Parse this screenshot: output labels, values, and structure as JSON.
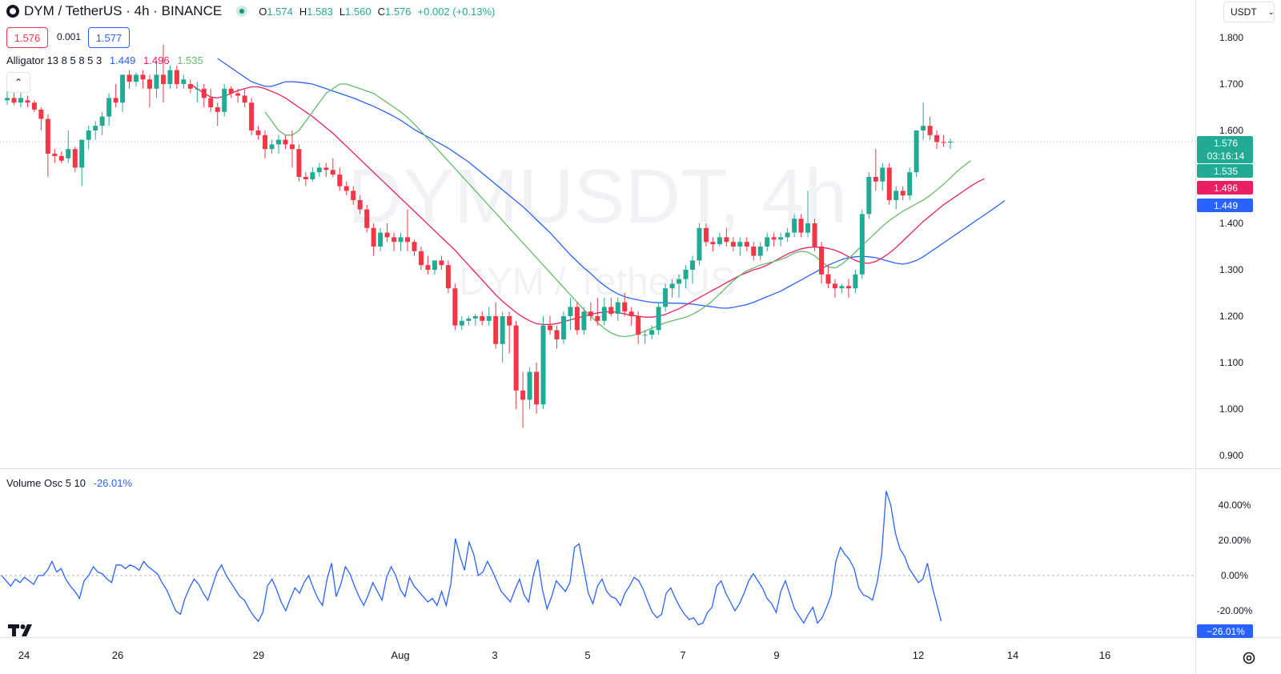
{
  "header": {
    "symbol": "DYM / TetherUS · 4h · BINANCE",
    "open_label": "O",
    "open": "1.574",
    "high_label": "H",
    "high": "1.583",
    "low_label": "L",
    "low": "1.560",
    "close_label": "C",
    "close": "1.576",
    "change": "+0.002 (+0.13%)"
  },
  "price_boxes": {
    "sell": "1.576",
    "spread": "0.001",
    "buy": "1.577"
  },
  "alligator": {
    "label": "Alligator 13 8 5 8 5 3",
    "jaw": "1.449",
    "teeth": "1.496",
    "lips": "1.535"
  },
  "volume_osc": {
    "label": "Volume Osc 5 10",
    "value": "-26.01%"
  },
  "currency_button": "USDT",
  "watermark": {
    "main": "DYMUSDT, 4h",
    "sub": "DYM / TetherUS"
  },
  "price_axis": {
    "ticks": [
      "1.800",
      "1.700",
      "1.600",
      "1.400",
      "1.300",
      "1.200",
      "1.100",
      "1.000",
      "0.900"
    ]
  },
  "osc_axis": {
    "ticks": [
      "40.00%",
      "20.00%",
      "0.00%",
      "-20.00%"
    ]
  },
  "last_price": {
    "price": "1.576",
    "countdown": "03:16:14"
  },
  "axis_labels": {
    "lips": "1.535",
    "teeth": "1.496",
    "jaw": "1.449",
    "osc": "−26.01%"
  },
  "time_axis": {
    "labels": [
      "24",
      "26",
      "29",
      "Aug",
      "3",
      "5",
      "7",
      "9",
      "12",
      "14",
      "16"
    ]
  },
  "colors": {
    "up": "#22ab94",
    "down": "#f23645",
    "jaw": "#2962ff",
    "teeth": "#e91e63",
    "lips": "#66bb6a",
    "osc": "#2962ff"
  },
  "icons": {
    "tv_logo": "tradingview-logo-icon",
    "settings": "settings-gear-icon",
    "collapse": "chevron-up-icon",
    "dropdown": "chevron-down-icon"
  },
  "chart_data": {
    "type": "candlestick",
    "timeframe": "4h",
    "ylim": [
      0.9,
      1.8
    ],
    "candles": [
      [
        1.665,
        1.685,
        1.655,
        1.67
      ],
      [
        1.67,
        1.69,
        1.655,
        1.66
      ],
      [
        1.66,
        1.69,
        1.65,
        1.67
      ],
      [
        1.665,
        1.675,
        1.65,
        1.66
      ],
      [
        1.66,
        1.665,
        1.64,
        1.645
      ],
      [
        1.645,
        1.65,
        1.6,
        1.625
      ],
      [
        1.625,
        1.635,
        1.5,
        1.55
      ],
      [
        1.55,
        1.56,
        1.53,
        1.545
      ],
      [
        1.545,
        1.555,
        1.53,
        1.535
      ],
      [
        1.54,
        1.6,
        1.53,
        1.56
      ],
      [
        1.56,
        1.565,
        1.51,
        1.52
      ],
      [
        1.52,
        1.58,
        1.48,
        1.58
      ],
      [
        1.58,
        1.61,
        1.56,
        1.6
      ],
      [
        1.6,
        1.62,
        1.58,
        1.61
      ],
      [
        1.61,
        1.64,
        1.59,
        1.63
      ],
      [
        1.63,
        1.68,
        1.61,
        1.67
      ],
      [
        1.67,
        1.7,
        1.65,
        1.66
      ],
      [
        1.66,
        1.72,
        1.64,
        1.72
      ],
      [
        1.72,
        1.73,
        1.69,
        1.705
      ],
      [
        1.705,
        1.725,
        1.695,
        1.72
      ],
      [
        1.72,
        1.73,
        1.69,
        1.71
      ],
      [
        1.71,
        1.72,
        1.65,
        1.69
      ],
      [
        1.69,
        1.75,
        1.67,
        1.72
      ],
      [
        1.72,
        1.785,
        1.66,
        1.7
      ],
      [
        1.7,
        1.74,
        1.69,
        1.73
      ],
      [
        1.73,
        1.74,
        1.69,
        1.7
      ],
      [
        1.7,
        1.72,
        1.69,
        1.71
      ],
      [
        1.7,
        1.71,
        1.68,
        1.69
      ],
      [
        1.69,
        1.705,
        1.66,
        1.69
      ],
      [
        1.69,
        1.7,
        1.65,
        1.67
      ],
      [
        1.67,
        1.69,
        1.64,
        1.65
      ],
      [
        1.65,
        1.66,
        1.61,
        1.64
      ],
      [
        1.64,
        1.7,
        1.63,
        1.69
      ],
      [
        1.69,
        1.695,
        1.67,
        1.68
      ],
      [
        1.68,
        1.69,
        1.66,
        1.675
      ],
      [
        1.675,
        1.69,
        1.65,
        1.66
      ],
      [
        1.66,
        1.67,
        1.59,
        1.6
      ],
      [
        1.6,
        1.61,
        1.58,
        1.59
      ],
      [
        1.59,
        1.6,
        1.54,
        1.56
      ],
      [
        1.56,
        1.58,
        1.55,
        1.57
      ],
      [
        1.57,
        1.59,
        1.55,
        1.58
      ],
      [
        1.58,
        1.59,
        1.56,
        1.57
      ],
      [
        1.57,
        1.6,
        1.52,
        1.56
      ],
      [
        1.56,
        1.57,
        1.49,
        1.5
      ],
      [
        1.5,
        1.51,
        1.48,
        1.495
      ],
      [
        1.495,
        1.52,
        1.49,
        1.51
      ],
      [
        1.51,
        1.53,
        1.5,
        1.52
      ],
      [
        1.52,
        1.53,
        1.5,
        1.515
      ],
      [
        1.515,
        1.54,
        1.5,
        1.505
      ],
      [
        1.505,
        1.52,
        1.47,
        1.48
      ],
      [
        1.48,
        1.49,
        1.46,
        1.47
      ],
      [
        1.47,
        1.48,
        1.44,
        1.45
      ],
      [
        1.45,
        1.46,
        1.42,
        1.43
      ],
      [
        1.43,
        1.44,
        1.38,
        1.39
      ],
      [
        1.39,
        1.4,
        1.33,
        1.35
      ],
      [
        1.35,
        1.39,
        1.34,
        1.38
      ],
      [
        1.38,
        1.4,
        1.36,
        1.37
      ],
      [
        1.37,
        1.38,
        1.34,
        1.36
      ],
      [
        1.36,
        1.38,
        1.34,
        1.37
      ],
      [
        1.37,
        1.43,
        1.34,
        1.36
      ],
      [
        1.36,
        1.365,
        1.33,
        1.34
      ],
      [
        1.34,
        1.35,
        1.3,
        1.31
      ],
      [
        1.31,
        1.33,
        1.29,
        1.3
      ],
      [
        1.3,
        1.32,
        1.29,
        1.32
      ],
      [
        1.32,
        1.33,
        1.3,
        1.31
      ],
      [
        1.31,
        1.32,
        1.25,
        1.26
      ],
      [
        1.26,
        1.27,
        1.17,
        1.18
      ],
      [
        1.18,
        1.2,
        1.17,
        1.19
      ],
      [
        1.19,
        1.2,
        1.18,
        1.195
      ],
      [
        1.195,
        1.205,
        1.18,
        1.2
      ],
      [
        1.2,
        1.21,
        1.18,
        1.19
      ],
      [
        1.19,
        1.22,
        1.18,
        1.2
      ],
      [
        1.2,
        1.23,
        1.13,
        1.14
      ],
      [
        1.14,
        1.21,
        1.1,
        1.2
      ],
      [
        1.2,
        1.21,
        1.12,
        1.18
      ],
      [
        1.18,
        1.19,
        1.0,
        1.04
      ],
      [
        1.04,
        1.08,
        0.96,
        1.02
      ],
      [
        1.02,
        1.09,
        1.0,
        1.08
      ],
      [
        1.08,
        1.1,
        0.99,
        1.01
      ],
      [
        1.01,
        1.2,
        1.0,
        1.18
      ],
      [
        1.18,
        1.2,
        1.16,
        1.17
      ],
      [
        1.17,
        1.18,
        1.13,
        1.15
      ],
      [
        1.15,
        1.21,
        1.14,
        1.2
      ],
      [
        1.2,
        1.24,
        1.17,
        1.22
      ],
      [
        1.22,
        1.23,
        1.16,
        1.17
      ],
      [
        1.17,
        1.22,
        1.16,
        1.21
      ],
      [
        1.21,
        1.23,
        1.19,
        1.2
      ],
      [
        1.2,
        1.24,
        1.18,
        1.19
      ],
      [
        1.19,
        1.24,
        1.18,
        1.22
      ],
      [
        1.22,
        1.24,
        1.2,
        1.205
      ],
      [
        1.205,
        1.24,
        1.19,
        1.23
      ],
      [
        1.23,
        1.25,
        1.2,
        1.21
      ],
      [
        1.21,
        1.22,
        1.18,
        1.2
      ],
      [
        1.2,
        1.21,
        1.14,
        1.16
      ],
      [
        1.16,
        1.17,
        1.14,
        1.16
      ],
      [
        1.16,
        1.18,
        1.15,
        1.17
      ],
      [
        1.17,
        1.23,
        1.16,
        1.22
      ],
      [
        1.22,
        1.27,
        1.21,
        1.26
      ],
      [
        1.26,
        1.28,
        1.24,
        1.27
      ],
      [
        1.27,
        1.29,
        1.24,
        1.28
      ],
      [
        1.28,
        1.31,
        1.26,
        1.3
      ],
      [
        1.3,
        1.33,
        1.27,
        1.32
      ],
      [
        1.32,
        1.4,
        1.31,
        1.39
      ],
      [
        1.39,
        1.4,
        1.35,
        1.36
      ],
      [
        1.36,
        1.37,
        1.34,
        1.355
      ],
      [
        1.355,
        1.38,
        1.35,
        1.37
      ],
      [
        1.37,
        1.39,
        1.35,
        1.36
      ],
      [
        1.36,
        1.37,
        1.34,
        1.35
      ],
      [
        1.35,
        1.37,
        1.33,
        1.36
      ],
      [
        1.36,
        1.37,
        1.34,
        1.35
      ],
      [
        1.35,
        1.36,
        1.32,
        1.33
      ],
      [
        1.33,
        1.36,
        1.32,
        1.35
      ],
      [
        1.35,
        1.38,
        1.34,
        1.37
      ],
      [
        1.37,
        1.38,
        1.35,
        1.365
      ],
      [
        1.365,
        1.38,
        1.35,
        1.37
      ],
      [
        1.37,
        1.39,
        1.36,
        1.38
      ],
      [
        1.38,
        1.42,
        1.37,
        1.41
      ],
      [
        1.41,
        1.42,
        1.37,
        1.38
      ],
      [
        1.38,
        1.47,
        1.37,
        1.4
      ],
      [
        1.4,
        1.41,
        1.34,
        1.35
      ],
      [
        1.35,
        1.36,
        1.27,
        1.29
      ],
      [
        1.29,
        1.31,
        1.26,
        1.27
      ],
      [
        1.27,
        1.28,
        1.24,
        1.26
      ],
      [
        1.26,
        1.27,
        1.25,
        1.265
      ],
      [
        1.265,
        1.28,
        1.24,
        1.26
      ],
      [
        1.26,
        1.3,
        1.25,
        1.29
      ],
      [
        1.29,
        1.43,
        1.28,
        1.42
      ],
      [
        1.42,
        1.51,
        1.41,
        1.5
      ],
      [
        1.5,
        1.56,
        1.47,
        1.49
      ],
      [
        1.49,
        1.53,
        1.47,
        1.52
      ],
      [
        1.52,
        1.53,
        1.44,
        1.45
      ],
      [
        1.45,
        1.48,
        1.43,
        1.47
      ],
      [
        1.47,
        1.48,
        1.45,
        1.46
      ],
      [
        1.46,
        1.52,
        1.45,
        1.51
      ],
      [
        1.51,
        1.6,
        1.5,
        1.6
      ],
      [
        1.6,
        1.66,
        1.58,
        1.61
      ],
      [
        1.61,
        1.63,
        1.58,
        1.59
      ],
      [
        1.59,
        1.6,
        1.56,
        1.575
      ],
      [
        1.575,
        1.59,
        1.565,
        1.574
      ],
      [
        1.574,
        1.583,
        1.56,
        1.576
      ]
    ],
    "jaw": [
      1.755,
      1.745,
      1.735,
      1.725,
      1.715,
      1.705,
      1.7,
      1.695,
      1.695,
      1.7,
      1.705,
      1.705,
      1.704,
      1.702,
      1.7,
      1.695,
      1.69,
      1.685,
      1.68,
      1.675,
      1.67,
      1.664,
      1.658,
      1.652,
      1.645,
      1.638,
      1.63,
      1.622,
      1.612,
      1.602,
      1.594,
      1.586,
      1.578,
      1.57,
      1.562,
      1.552,
      1.542,
      1.532,
      1.52,
      1.508,
      1.496,
      1.484,
      1.472,
      1.46,
      1.448,
      1.436,
      1.422,
      1.408,
      1.394,
      1.38,
      1.364,
      1.348,
      1.332,
      1.318,
      1.304,
      1.292,
      1.278,
      1.266,
      1.256,
      1.248,
      1.242,
      1.238,
      1.235,
      1.232,
      1.23,
      1.229,
      1.229,
      1.228,
      1.228,
      1.227,
      1.226,
      1.224,
      1.222,
      1.22,
      1.218,
      1.217,
      1.219,
      1.222,
      1.225,
      1.23,
      1.236,
      1.242,
      1.248,
      1.254,
      1.262,
      1.27,
      1.278,
      1.286,
      1.294,
      1.302,
      1.31,
      1.316,
      1.322,
      1.326,
      1.328,
      1.329,
      1.328,
      1.326,
      1.322,
      1.318,
      1.314,
      1.312,
      1.315,
      1.32,
      1.328,
      1.338,
      1.348,
      1.358,
      1.368,
      1.378,
      1.388,
      1.398,
      1.408,
      1.418,
      1.428,
      1.438,
      1.449
    ],
    "teeth": [
      1.7,
      1.69,
      1.68,
      1.672,
      1.67,
      1.674,
      1.68,
      1.686,
      1.69,
      1.694,
      1.694,
      1.69,
      1.684,
      1.678,
      1.67,
      1.66,
      1.65,
      1.64,
      1.63,
      1.618,
      1.606,
      1.594,
      1.58,
      1.566,
      1.552,
      1.538,
      1.524,
      1.51,
      1.496,
      1.482,
      1.468,
      1.454,
      1.44,
      1.426,
      1.412,
      1.398,
      1.384,
      1.37,
      1.356,
      1.342,
      1.326,
      1.31,
      1.294,
      1.278,
      1.262,
      1.246,
      1.232,
      1.22,
      1.208,
      1.198,
      1.19,
      1.184,
      1.182,
      1.182,
      1.184,
      1.188,
      1.192,
      1.196,
      1.2,
      1.204,
      1.207,
      1.209,
      1.21,
      1.208,
      1.205,
      1.202,
      1.2,
      1.198,
      1.198,
      1.2,
      1.204,
      1.21,
      1.216,
      1.224,
      1.232,
      1.24,
      1.248,
      1.256,
      1.264,
      1.272,
      1.28,
      1.288,
      1.294,
      1.3,
      1.304,
      1.31,
      1.318,
      1.326,
      1.334,
      1.34,
      1.345,
      1.348,
      1.349,
      1.348,
      1.346,
      1.342,
      1.336,
      1.328,
      1.32,
      1.315,
      1.314,
      1.318,
      1.326,
      1.336,
      1.348,
      1.362,
      1.376,
      1.39,
      1.404,
      1.416,
      1.428,
      1.44,
      1.45,
      1.46,
      1.47,
      1.48,
      1.489,
      1.496
    ],
    "lips": [
      1.64,
      1.62,
      1.6,
      1.59,
      1.59,
      1.6,
      1.62,
      1.64,
      1.66,
      1.68,
      1.69,
      1.7,
      1.7,
      1.695,
      1.69,
      1.685,
      1.68,
      1.67,
      1.66,
      1.65,
      1.64,
      1.628,
      1.614,
      1.598,
      1.582,
      1.566,
      1.55,
      1.534,
      1.518,
      1.502,
      1.486,
      1.47,
      1.454,
      1.438,
      1.422,
      1.406,
      1.39,
      1.374,
      1.358,
      1.342,
      1.326,
      1.31,
      1.294,
      1.278,
      1.262,
      1.246,
      1.23,
      1.214,
      1.2,
      1.186,
      1.174,
      1.164,
      1.158,
      1.156,
      1.158,
      1.162,
      1.168,
      1.174,
      1.18,
      1.186,
      1.19,
      1.194,
      1.198,
      1.204,
      1.212,
      1.222,
      1.234,
      1.248,
      1.262,
      1.276,
      1.288,
      1.298,
      1.304,
      1.31,
      1.314,
      1.318,
      1.322,
      1.328,
      1.336,
      1.34,
      1.338,
      1.33,
      1.318,
      1.306,
      1.304,
      1.312,
      1.324,
      1.338,
      1.352,
      1.366,
      1.38,
      1.394,
      1.406,
      1.416,
      1.426,
      1.434,
      1.442,
      1.45,
      1.46,
      1.472,
      1.484,
      1.498,
      1.512,
      1.524,
      1.535
    ],
    "volume_osc": [
      0,
      -3,
      -6,
      -2,
      -4,
      -1,
      -3,
      -5,
      0,
      0,
      3,
      8,
      2,
      4,
      -2,
      -6,
      -9,
      -13,
      -3,
      0,
      5,
      2,
      1,
      -2,
      -4,
      6,
      6,
      4,
      6,
      5,
      3,
      8,
      5,
      3,
      1,
      -4,
      -8,
      -14,
      -20,
      -22,
      -13,
      -7,
      -2,
      -5,
      -10,
      -14,
      -6,
      2,
      6,
      0,
      -4,
      -8,
      -12,
      -14,
      -19,
      -23,
      -26,
      -21,
      -6,
      -2,
      -8,
      -15,
      -20,
      -13,
      -7,
      -10,
      -4,
      0,
      -7,
      -13,
      -17,
      -2,
      7,
      -12,
      -5,
      5,
      1,
      -6,
      -12,
      -17,
      -11,
      -4,
      -9,
      -14,
      -1,
      5,
      0,
      -8,
      -12,
      -1,
      -6,
      -9,
      -12,
      -15,
      -13,
      -17,
      -9,
      -17,
      -5,
      21,
      11,
      3,
      19,
      12,
      0,
      2,
      8,
      3,
      -3,
      -9,
      -12,
      -15,
      -8,
      -2,
      -11,
      -15,
      0,
      9,
      -8,
      -19,
      -12,
      -3,
      -6,
      -9,
      -4,
      16,
      18,
      4,
      -10,
      -16,
      -6,
      -2,
      -9,
      -12,
      -13,
      -17,
      -10,
      -6,
      -1,
      -3,
      -8,
      -15,
      -21,
      -24,
      -22,
      -10,
      -7,
      -13,
      -18,
      -22,
      -25,
      -24,
      -28,
      -27,
      -21,
      -18,
      -6,
      -3,
      -10,
      -15,
      -20,
      -16,
      -10,
      -3,
      1,
      -3,
      -7,
      -13,
      -16,
      -21,
      -9,
      -3,
      -11,
      -19,
      -23,
      -27,
      -22,
      -18,
      -27,
      -24,
      -18,
      -11,
      8,
      16,
      12,
      9,
      4,
      -7,
      -11,
      -12,
      -14,
      -4,
      12,
      48,
      40,
      24,
      15,
      11,
      4,
      0,
      -4,
      -2,
      7,
      -6,
      -16,
      -26
    ]
  }
}
